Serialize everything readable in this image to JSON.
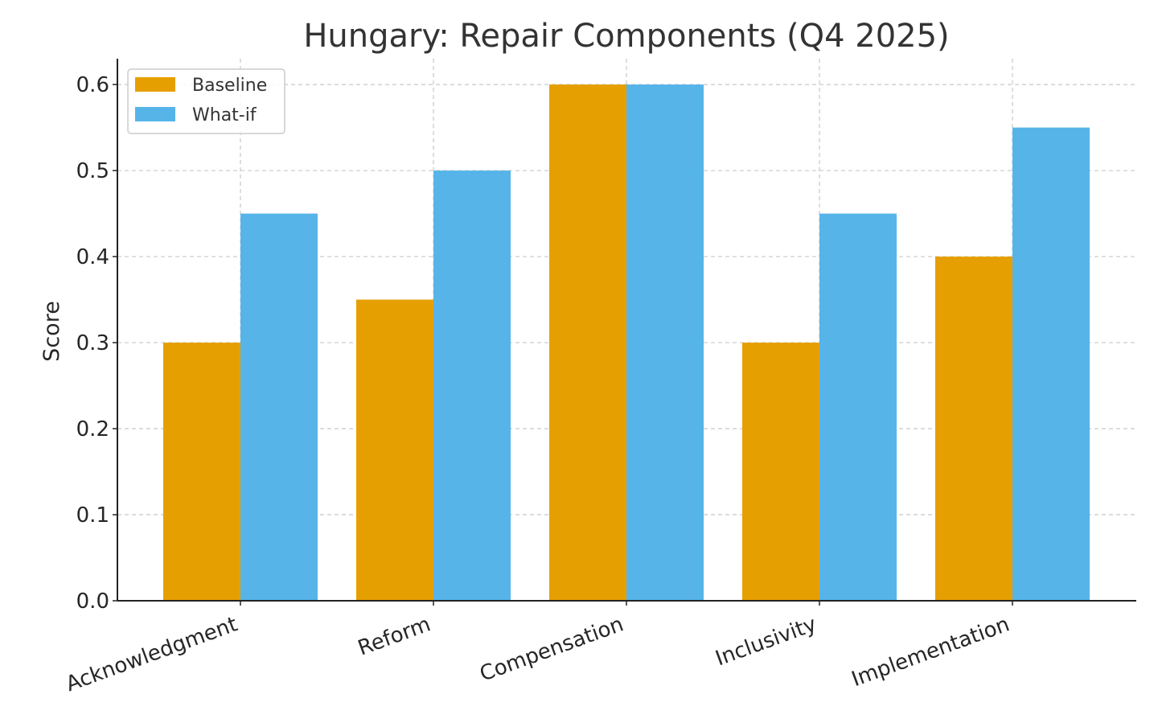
{
  "chart_data": {
    "type": "bar",
    "title": "Hungary: Repair Components (Q4 2025)",
    "xlabel": "",
    "ylabel": "Score",
    "categories": [
      "Acknowledgment",
      "Reform",
      "Compensation",
      "Inclusivity",
      "Implementation"
    ],
    "series": [
      {
        "name": "Baseline",
        "color": "#E69F00",
        "values": [
          0.3,
          0.35,
          0.6,
          0.3,
          0.4
        ]
      },
      {
        "name": "What-if",
        "color": "#56B4E9",
        "values": [
          0.45,
          0.5,
          0.6,
          0.45,
          0.55
        ]
      }
    ],
    "ylim": [
      0,
      0.63
    ],
    "yticks": [
      "0.0",
      "0.1",
      "0.2",
      "0.3",
      "0.4",
      "0.5",
      "0.6"
    ],
    "grid": true,
    "legend_position": "upper-left"
  }
}
